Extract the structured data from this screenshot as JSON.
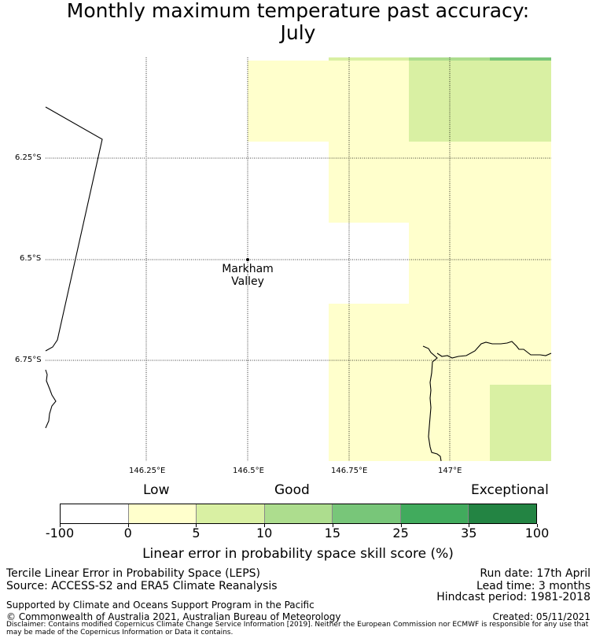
{
  "title": {
    "line1": "Monthly maximum temperature past accuracy:",
    "line2": "July"
  },
  "map": {
    "lat_labels": [
      "6.25°S",
      "6.5°S",
      "6.75°S"
    ],
    "lon_labels": [
      "146.25°E",
      "146.5°E",
      "146.75°E",
      "147°E"
    ],
    "place": {
      "name_line1": "Markham",
      "name_line2": "Valley",
      "lon": 146.5,
      "lat": -6.5
    },
    "colors": {
      "0-5": "#ffffcc",
      "5-10": "#d9f0a3",
      "10-15": "#addd8e",
      "15-25": "#78c679",
      "25-35": "#41ab5d",
      "35-100": "#238443"
    },
    "cells": [
      {
        "lon_range": [
          146.7,
          146.9
        ],
        "lat_range": [
          -6.0,
          -6.2
        ],
        "class": "0-5"
      },
      {
        "lon_range": [
          146.9,
          147.1
        ],
        "lat_range": [
          -6.0,
          -6.2
        ],
        "class": "5-10"
      },
      {
        "lon_range": [
          146.5,
          146.7
        ],
        "lat_range": [
          -6.0,
          -6.2
        ],
        "class": "0-5"
      },
      {
        "lon_range": [
          147.1,
          147.25
        ],
        "lat_range": [
          -6.0,
          -6.2
        ],
        "class": "5-10"
      }
    ]
  },
  "legend": {
    "categories": [
      "Low",
      "Good",
      "Exceptional"
    ],
    "ticks": [
      "-100",
      "0",
      "5",
      "10",
      "15",
      "25",
      "35",
      "100"
    ],
    "bin_colors": [
      "#ffffff",
      "#ffffcc",
      "#d9f0a3",
      "#addd8e",
      "#78c679",
      "#41ab5d",
      "#238443"
    ],
    "label": "Linear error in probability space skill score (%)"
  },
  "footer": {
    "left1": "Tercile Linear Error in Probability Space (LEPS)",
    "left2": "Source: ACCESS-S2 and ERA5 Climate Reanalysis",
    "left3": "Supported by Climate and Oceans Support Program in the Pacific",
    "left4": "© Commonwealth of Australia 2021, Australian Bureau of Meteorology",
    "right1": "Run date: 17th April",
    "right2": "Lead time: 3 months",
    "right3": "Hindcast period: 1981-2018",
    "right4": "Created: 05/11/2021",
    "disclaimer": "Disclaimer: Contains modified Copernicus Climate Change Service Information [2019]. Neither the European Commission nor ECMWF is responsible for any use that may be made of the Copernicus Information or Data it contains."
  }
}
